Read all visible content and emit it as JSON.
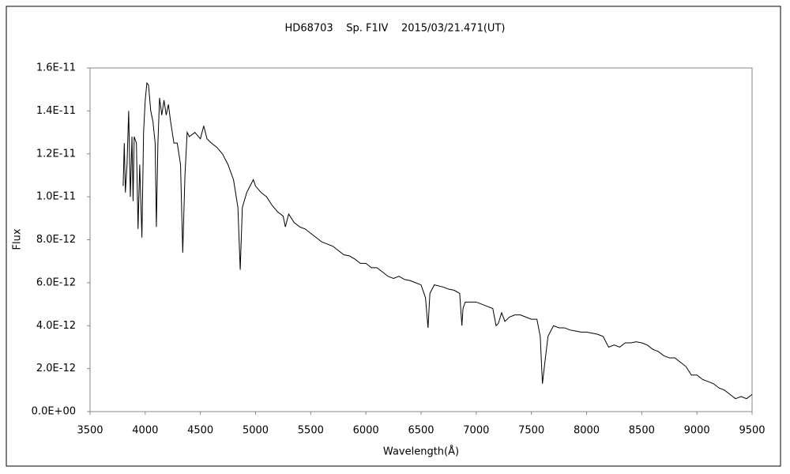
{
  "chart_data": {
    "type": "line",
    "title": "HD68703    Sp. F1IV    2015/03/21.471(UT)",
    "x_label": "Wavelength(Å)",
    "y_label": "Flux",
    "xlim": [
      3500,
      9500
    ],
    "xticks": [
      3500,
      4000,
      4500,
      5000,
      5500,
      6000,
      6500,
      7000,
      7500,
      8000,
      8500,
      9000,
      9500
    ],
    "ylim": [
      0,
      1.6e-11
    ],
    "yticks": [
      {
        "value": 0,
        "label": "0.0E+00"
      },
      {
        "value": 2e-12,
        "label": "2.0E-12"
      },
      {
        "value": 4e-12,
        "label": "4.0E-12"
      },
      {
        "value": 6e-12,
        "label": "6.0E-12"
      },
      {
        "value": 8e-12,
        "label": "8.0E-12"
      },
      {
        "value": 1e-11,
        "label": "1.0E-11"
      },
      {
        "value": 1.2e-11,
        "label": "1.2E-11"
      },
      {
        "value": 1.4e-11,
        "label": "1.4E-11"
      },
      {
        "value": 1.6e-11,
        "label": "1.6E-11"
      }
    ],
    "grid": false,
    "series": [
      {
        "name": "Flux",
        "color": "#000000",
        "x": [
          3800,
          3810,
          3820,
          3835,
          3850,
          3865,
          3880,
          3890,
          3900,
          3920,
          3935,
          3950,
          3970,
          3985,
          4000,
          4015,
          4030,
          4050,
          4070,
          4090,
          4101,
          4115,
          4130,
          4150,
          4170,
          4190,
          4210,
          4230,
          4260,
          4290,
          4320,
          4340,
          4360,
          4380,
          4400,
          4450,
          4500,
          4530,
          4560,
          4600,
          4650,
          4700,
          4750,
          4800,
          4840,
          4861,
          4880,
          4920,
          4950,
          4980,
          5000,
          5050,
          5100,
          5150,
          5200,
          5250,
          5270,
          5300,
          5350,
          5400,
          5450,
          5500,
          5550,
          5600,
          5650,
          5700,
          5750,
          5800,
          5850,
          5900,
          5950,
          6000,
          6050,
          6100,
          6150,
          6200,
          6250,
          6300,
          6350,
          6400,
          6450,
          6500,
          6540,
          6563,
          6580,
          6620,
          6700,
          6750,
          6800,
          6850,
          6870,
          6880,
          6900,
          6950,
          7000,
          7050,
          7100,
          7150,
          7180,
          7200,
          7230,
          7260,
          7300,
          7350,
          7400,
          7450,
          7500,
          7550,
          7580,
          7600,
          7620,
          7650,
          7700,
          7750,
          7800,
          7850,
          7900,
          7950,
          8000,
          8050,
          8100,
          8150,
          8200,
          8250,
          8300,
          8350,
          8400,
          8450,
          8500,
          8550,
          8600,
          8650,
          8700,
          8750,
          8800,
          8850,
          8900,
          8950,
          9000,
          9050,
          9100,
          9150,
          9200,
          9250,
          9300,
          9350,
          9400,
          9450,
          9500
        ],
        "values": [
          1.05e-11,
          1.25e-11,
          1.02e-11,
          1.15e-11,
          1.4e-11,
          1e-11,
          1.28e-11,
          9.8e-12,
          1.28e-11,
          1.25e-11,
          8.5e-12,
          1.15e-11,
          8.1e-12,
          1.3e-11,
          1.45e-11,
          1.53e-11,
          1.52e-11,
          1.4e-11,
          1.35e-11,
          1.25e-11,
          8.6e-12,
          1.25e-11,
          1.46e-11,
          1.38e-11,
          1.45e-11,
          1.38e-11,
          1.43e-11,
          1.35e-11,
          1.25e-11,
          1.25e-11,
          1.15e-11,
          7.4e-12,
          1.1e-11,
          1.3e-11,
          1.28e-11,
          1.3e-11,
          1.27e-11,
          1.33e-11,
          1.27e-11,
          1.25e-11,
          1.23e-11,
          1.2e-11,
          1.15e-11,
          1.08e-11,
          9.5e-12,
          6.6e-12,
          9.5e-12,
          1.02e-11,
          1.05e-11,
          1.08e-11,
          1.05e-11,
          1.02e-11,
          1e-11,
          9.6e-12,
          9.3e-12,
          9.1e-12,
          8.6e-12,
          9.2e-12,
          8.8e-12,
          8.6e-12,
          8.5e-12,
          8.3e-12,
          8.1e-12,
          7.9e-12,
          7.8e-12,
          7.7e-12,
          7.5e-12,
          7.3e-12,
          7.25e-12,
          7.1e-12,
          6.9e-12,
          6.9e-12,
          6.7e-12,
          6.7e-12,
          6.5e-12,
          6.3e-12,
          6.2e-12,
          6.3e-12,
          6.15e-12,
          6.1e-12,
          6e-12,
          5.9e-12,
          5.3e-12,
          3.9e-12,
          5.5e-12,
          5.9e-12,
          5.8e-12,
          5.7e-12,
          5.65e-12,
          5.5e-12,
          4e-12,
          4.8e-12,
          5.1e-12,
          5.1e-12,
          5.1e-12,
          5e-12,
          4.9e-12,
          4.8e-12,
          4e-12,
          4.1e-12,
          4.6e-12,
          4.2e-12,
          4.4e-12,
          4.5e-12,
          4.5e-12,
          4.4e-12,
          4.3e-12,
          4.3e-12,
          3.5e-12,
          1.3e-12,
          2.2e-12,
          3.5e-12,
          4e-12,
          3.9e-12,
          3.9e-12,
          3.8e-12,
          3.75e-12,
          3.7e-12,
          3.7e-12,
          3.65e-12,
          3.6e-12,
          3.5e-12,
          3e-12,
          3.1e-12,
          3e-12,
          3.2e-12,
          3.2e-12,
          3.25e-12,
          3.2e-12,
          3.1e-12,
          2.9e-12,
          2.8e-12,
          2.6e-12,
          2.5e-12,
          2.5e-12,
          2.3e-12,
          2.1e-12,
          1.7e-12,
          1.7e-12,
          1.5e-12,
          1.4e-12,
          1.3e-12,
          1.1e-12,
          1e-12,
          8e-13,
          6e-13,
          7e-13,
          6e-13,
          8e-13
        ]
      }
    ]
  }
}
